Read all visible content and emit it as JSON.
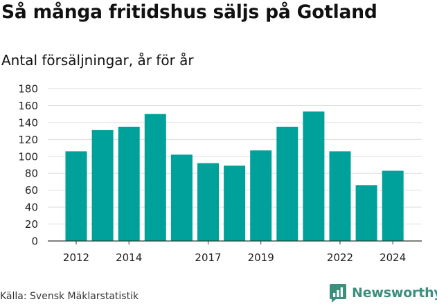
{
  "title": "Så många fritidshus säljs på Gotland",
  "subtitle": "Antal försäljningar, år för år",
  "source": "Källa: Svensk Mäklarstatistik",
  "brand": "Newsworthy",
  "logo_icon": "bar-chart-speech-bubble-icon",
  "colors": {
    "bar": "#00a19a",
    "grid": "#dddddd",
    "axis": "#333333",
    "brand": "#3d8f7d"
  },
  "chart_data": {
    "type": "bar",
    "x": [
      2012,
      2013,
      2014,
      2015,
      2016,
      2017,
      2018,
      2019,
      2020,
      2021,
      2022,
      2023,
      2024
    ],
    "values": [
      106,
      131,
      135,
      150,
      102,
      92,
      89,
      107,
      135,
      153,
      106,
      66,
      83
    ],
    "x_tick_labels": [
      "2012",
      "2014",
      "2017",
      "2019",
      "2022",
      "2024"
    ],
    "y_ticks": [
      0,
      20,
      40,
      60,
      80,
      100,
      120,
      140,
      160,
      180
    ],
    "ylim": [
      0,
      180
    ],
    "grid": true,
    "legend": "none",
    "xlabel": "",
    "ylabel": ""
  }
}
